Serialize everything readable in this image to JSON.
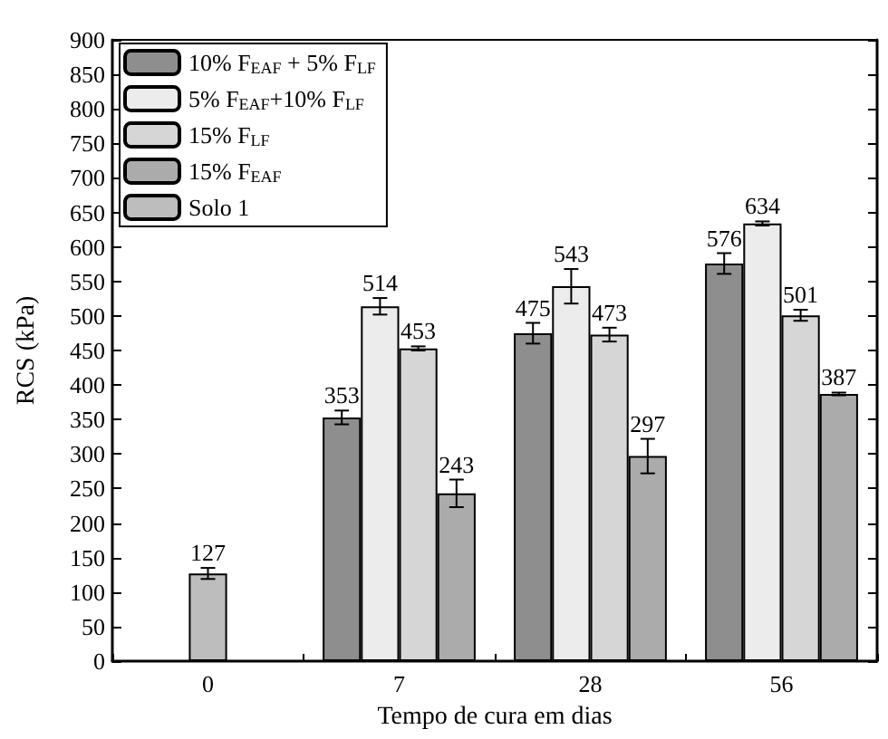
{
  "chart_data": {
    "type": "bar",
    "xlabel": "Tempo de cura em dias",
    "ylabel": "RCS (kPa)",
    "categories": [
      "0",
      "7",
      "28",
      "56"
    ],
    "series": [
      {
        "name": "10% F$_{EAF}$ + 5% F$_{LF}$",
        "color": "#8e8e8e",
        "values": [
          null,
          353,
          475,
          576
        ],
        "errors": [
          null,
          10,
          15,
          15
        ]
      },
      {
        "name": "5% F$_{EAF}$+10% F$_{LF}$",
        "color": "#ececec",
        "values": [
          null,
          514,
          543,
          634
        ],
        "errors": [
          null,
          12,
          25,
          3
        ]
      },
      {
        "name": "15% F$_{LF}$",
        "color": "#d6d6d6",
        "values": [
          null,
          453,
          473,
          501
        ],
        "errors": [
          null,
          3,
          10,
          8
        ]
      },
      {
        "name": "15% F$_{EAF}$",
        "color": "#ababab",
        "values": [
          null,
          243,
          297,
          387
        ],
        "errors": [
          null,
          20,
          25,
          2
        ]
      },
      {
        "name": "Solo 1",
        "color": "#bdbdbd",
        "values": [
          127,
          null,
          null,
          null
        ],
        "errors": [
          8,
          null,
          null,
          null
        ]
      }
    ],
    "ylim": [
      0,
      900
    ],
    "yticks": [
      0,
      50,
      100,
      150,
      200,
      250,
      300,
      350,
      400,
      450,
      500,
      550,
      600,
      650,
      700,
      750,
      800,
      850,
      900
    ],
    "data_labels": true,
    "grid": false,
    "legend": "top left"
  }
}
